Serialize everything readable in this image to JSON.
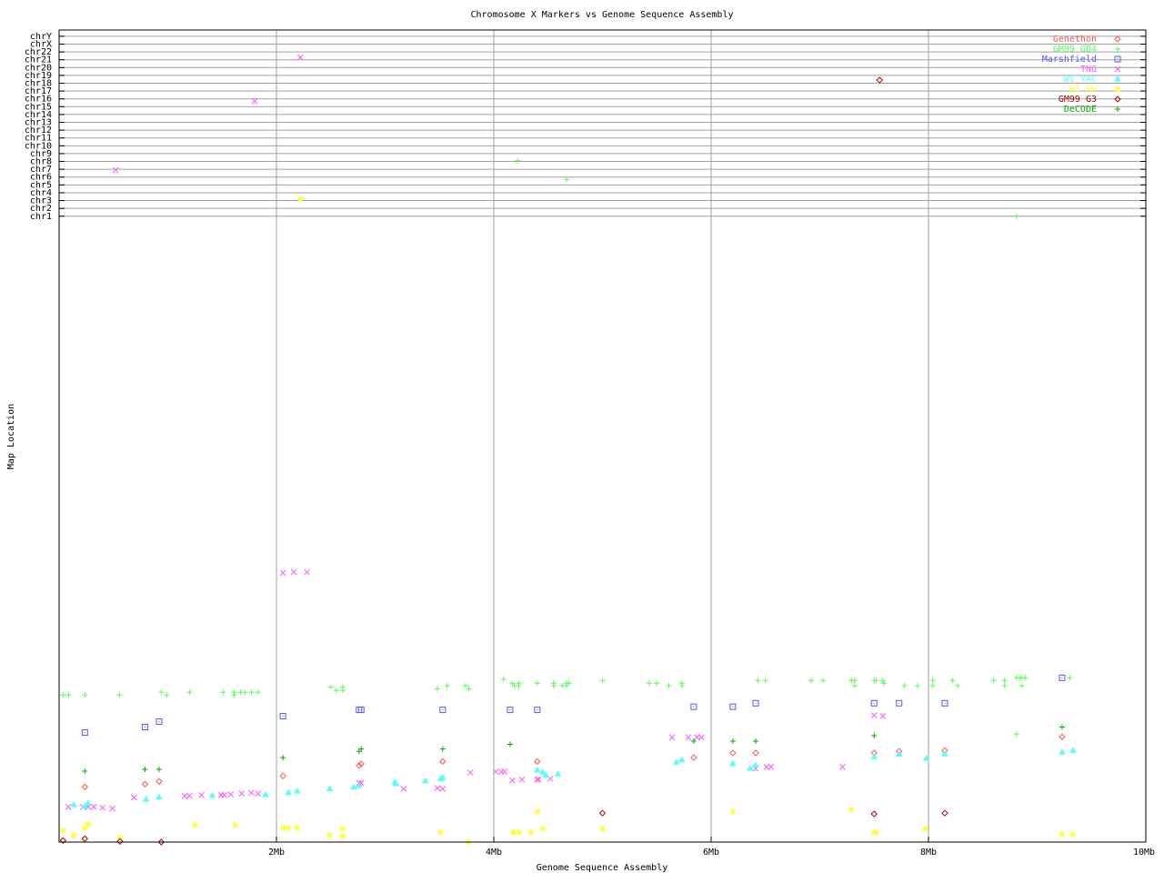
{
  "chart_data": {
    "type": "scatter",
    "title": "Chromosome X Markers vs Genome Sequence Assembly",
    "xlabel": "Genome Sequence Assembly",
    "ylabel": "Map Location",
    "xlim": [
      0,
      10
    ],
    "ylim": [
      0,
      103.8
    ],
    "x_ticks": [
      {
        "value": 2,
        "label": "2Mb"
      },
      {
        "value": 4,
        "label": "4Mb"
      },
      {
        "value": 6,
        "label": "6Mb"
      },
      {
        "value": 8,
        "label": "8Mb"
      },
      {
        "value": 10,
        "label": "10Mb"
      }
    ],
    "y_ticks": [
      {
        "value": 80,
        "label": "chr1"
      },
      {
        "value": 81,
        "label": "chr2"
      },
      {
        "value": 82,
        "label": "chr3"
      },
      {
        "value": 83,
        "label": "chr4"
      },
      {
        "value": 84,
        "label": "chr5"
      },
      {
        "value": 85,
        "label": "chr6"
      },
      {
        "value": 86,
        "label": "chr7"
      },
      {
        "value": 87,
        "label": "chr8"
      },
      {
        "value": 88,
        "label": "chr9"
      },
      {
        "value": 89,
        "label": "chr10"
      },
      {
        "value": 90,
        "label": "chr11"
      },
      {
        "value": 91,
        "label": "chr12"
      },
      {
        "value": 92,
        "label": "chr13"
      },
      {
        "value": 93,
        "label": "chr14"
      },
      {
        "value": 94,
        "label": "chr15"
      },
      {
        "value": 95,
        "label": "chr16"
      },
      {
        "value": 96,
        "label": "chr17"
      },
      {
        "value": 97,
        "label": "chr18"
      },
      {
        "value": 98,
        "label": "chr19"
      },
      {
        "value": 99,
        "label": "chr20"
      },
      {
        "value": 100,
        "label": "chr21"
      },
      {
        "value": 101,
        "label": "chr22"
      },
      {
        "value": 102,
        "label": "chrX"
      },
      {
        "value": 103,
        "label": "chrY"
      }
    ],
    "grid": true,
    "legend_position": "top-right",
    "series": [
      {
        "name": "Genethon",
        "marker": "diamond",
        "color": "#ff5555",
        "points": [
          [
            0.237,
            7.06
          ],
          [
            0.79,
            7.4
          ],
          [
            0.92,
            7.76
          ],
          [
            2.06,
            8.45
          ],
          [
            2.76,
            9.77
          ],
          [
            2.78,
            10.0
          ],
          [
            3.53,
            10.3
          ],
          [
            4.4,
            10.3
          ],
          [
            5.84,
            10.8
          ],
          [
            6.2,
            11.4
          ],
          [
            6.41,
            11.4
          ],
          [
            7.5,
            11.4
          ],
          [
            7.73,
            11.6
          ],
          [
            8.15,
            11.7
          ],
          [
            9.23,
            13.45
          ]
        ]
      },
      {
        "name": "GM99 GB4",
        "marker": "plus",
        "color": "#55ff55",
        "points": [
          [
            0.036,
            18.8
          ],
          [
            0.086,
            18.8
          ],
          [
            0.237,
            18.8
          ],
          [
            0.555,
            18.8
          ],
          [
            0.94,
            19.15
          ],
          [
            0.99,
            18.8
          ],
          [
            1.2,
            19.15
          ],
          [
            1.51,
            19.15
          ],
          [
            1.61,
            19.15
          ],
          [
            1.61,
            18.8
          ],
          [
            1.67,
            19.15
          ],
          [
            1.71,
            19.15
          ],
          [
            1.77,
            19.15
          ],
          [
            1.83,
            19.15
          ],
          [
            2.5,
            19.8
          ],
          [
            2.55,
            19.4
          ],
          [
            2.61,
            19.8
          ],
          [
            2.61,
            19.4
          ],
          [
            3.48,
            19.6
          ],
          [
            3.57,
            20.0
          ],
          [
            3.74,
            20.0
          ],
          [
            3.77,
            19.6
          ],
          [
            4.09,
            20.8
          ],
          [
            4.17,
            20.3
          ],
          [
            4.19,
            20.0
          ],
          [
            4.23,
            20.3
          ],
          [
            4.23,
            20.0
          ],
          [
            4.4,
            20.3
          ],
          [
            4.55,
            20.3
          ],
          [
            4.55,
            20.0
          ],
          [
            4.63,
            20.0
          ],
          [
            4.67,
            20.3
          ],
          [
            4.69,
            20.3
          ],
          [
            4.67,
            20.0
          ],
          [
            5.0,
            20.66
          ],
          [
            5.43,
            20.3
          ],
          [
            5.5,
            20.3
          ],
          [
            5.61,
            20.0
          ],
          [
            5.73,
            20.3
          ],
          [
            5.73,
            20.0
          ],
          [
            6.43,
            20.66
          ],
          [
            6.5,
            20.66
          ],
          [
            6.92,
            20.66
          ],
          [
            7.03,
            20.66
          ],
          [
            7.29,
            20.66
          ],
          [
            7.32,
            20.66
          ],
          [
            7.32,
            20.0
          ],
          [
            7.5,
            20.66
          ],
          [
            7.52,
            20.66
          ],
          [
            7.58,
            20.66
          ],
          [
            7.59,
            20.3
          ],
          [
            7.78,
            20.0
          ],
          [
            7.9,
            20.0
          ],
          [
            8.04,
            20.66
          ],
          [
            8.04,
            20.0
          ],
          [
            8.22,
            20.66
          ],
          [
            8.27,
            20.0
          ],
          [
            8.6,
            20.66
          ],
          [
            8.7,
            20.66
          ],
          [
            8.7,
            20.0
          ],
          [
            8.81,
            21.0
          ],
          [
            8.84,
            21.0
          ],
          [
            8.86,
            21.0
          ],
          [
            8.89,
            21.0
          ],
          [
            8.86,
            20.0
          ],
          [
            9.3,
            21.0
          ],
          [
            8.81,
            13.8
          ],
          [
            4.22,
            87.1
          ],
          [
            4.67,
            84.7
          ],
          [
            8.81,
            80.0
          ]
        ]
      },
      {
        "name": "Marshfield",
        "marker": "square",
        "color": "#5555ff",
        "points": [
          [
            0.237,
            14.0
          ],
          [
            0.79,
            14.7
          ],
          [
            0.92,
            15.4
          ],
          [
            2.06,
            16.1
          ],
          [
            2.76,
            16.9
          ],
          [
            2.78,
            16.9
          ],
          [
            3.53,
            16.9
          ],
          [
            4.15,
            16.9
          ],
          [
            4.4,
            16.9
          ],
          [
            5.84,
            17.3
          ],
          [
            6.2,
            17.3
          ],
          [
            6.41,
            17.75
          ],
          [
            7.5,
            17.75
          ],
          [
            7.73,
            17.75
          ],
          [
            8.15,
            17.75
          ],
          [
            9.23,
            21.0
          ]
        ]
      },
      {
        "name": "TNG",
        "marker": "cross",
        "color": "#ff55ff",
        "points": [
          [
            0.086,
            4.5
          ],
          [
            0.22,
            4.5
          ],
          [
            0.27,
            4.5
          ],
          [
            0.32,
            4.5
          ],
          [
            0.4,
            4.38
          ],
          [
            0.49,
            4.27
          ],
          [
            0.69,
            5.7
          ],
          [
            1.155,
            5.9
          ],
          [
            1.2,
            5.9
          ],
          [
            1.31,
            6.0
          ],
          [
            1.49,
            6.0
          ],
          [
            1.52,
            6.0
          ],
          [
            1.58,
            6.1
          ],
          [
            1.68,
            6.2
          ],
          [
            1.77,
            6.3
          ],
          [
            1.83,
            6.2
          ],
          [
            2.76,
            7.56
          ],
          [
            2.78,
            7.56
          ],
          [
            3.17,
            6.8
          ],
          [
            3.48,
            6.9
          ],
          [
            3.53,
            6.8
          ],
          [
            3.785,
            8.9
          ],
          [
            4.02,
            9.0
          ],
          [
            4.07,
            9.0
          ],
          [
            4.1,
            9.0
          ],
          [
            4.17,
            7.87
          ],
          [
            4.26,
            8.0
          ],
          [
            4.4,
            8.0
          ],
          [
            4.41,
            8.0
          ],
          [
            4.52,
            8.1
          ],
          [
            5.64,
            13.4
          ],
          [
            5.79,
            13.4
          ],
          [
            5.87,
            13.4
          ],
          [
            5.91,
            13.4
          ],
          [
            6.41,
            9.4
          ],
          [
            6.51,
            9.6
          ],
          [
            6.55,
            9.6
          ],
          [
            7.21,
            9.6
          ],
          [
            7.5,
            16.2
          ],
          [
            7.58,
            16.1
          ],
          [
            2.06,
            34.4
          ],
          [
            2.16,
            34.5
          ],
          [
            2.28,
            34.5
          ],
          [
            2.22,
            100.3
          ],
          [
            1.8,
            94.7
          ],
          [
            0.52,
            85.9
          ]
        ]
      },
      {
        "name": "WI YAC",
        "marker": "triangle",
        "color": "#55ffff",
        "points": [
          [
            0.136,
            4.77
          ],
          [
            0.237,
            4.57
          ],
          [
            0.265,
            4.96
          ],
          [
            0.8,
            5.47
          ],
          [
            0.92,
            5.74
          ],
          [
            1.41,
            5.93
          ],
          [
            1.9,
            6.05
          ],
          [
            2.11,
            6.3
          ],
          [
            2.19,
            6.5
          ],
          [
            2.49,
            6.8
          ],
          [
            2.71,
            7.0
          ],
          [
            2.76,
            7.2
          ],
          [
            3.09,
            7.67
          ],
          [
            3.1,
            7.44
          ],
          [
            3.37,
            7.8
          ],
          [
            3.51,
            8.06
          ],
          [
            3.53,
            8.26
          ],
          [
            4.4,
            9.2
          ],
          [
            4.45,
            8.95
          ],
          [
            4.48,
            8.5
          ],
          [
            4.59,
            8.7
          ],
          [
            5.68,
            10.2
          ],
          [
            5.73,
            10.5
          ],
          [
            6.2,
            10.0
          ],
          [
            6.36,
            9.4
          ],
          [
            6.41,
            9.8
          ],
          [
            7.5,
            10.9
          ],
          [
            7.73,
            11.2
          ],
          [
            7.98,
            10.7
          ],
          [
            8.15,
            11.25
          ],
          [
            9.23,
            11.5
          ],
          [
            9.33,
            11.7
          ]
        ]
      },
      {
        "name": "WI RH",
        "marker": "star",
        "color": "#ffff44",
        "points": [
          [
            0.036,
            1.47
          ],
          [
            0.136,
            0.9
          ],
          [
            0.237,
            1.83
          ],
          [
            0.265,
            2.3
          ],
          [
            0.56,
            0.58
          ],
          [
            1.25,
            2.17
          ],
          [
            1.62,
            2.17
          ],
          [
            2.06,
            1.83
          ],
          [
            2.11,
            1.83
          ],
          [
            2.19,
            1.83
          ],
          [
            2.49,
            0.9
          ],
          [
            2.61,
            1.7
          ],
          [
            2.61,
            0.78
          ],
          [
            3.51,
            1.24
          ],
          [
            3.77,
            0.0
          ],
          [
            4.4,
            3.9
          ],
          [
            4.18,
            1.24
          ],
          [
            4.23,
            1.24
          ],
          [
            4.34,
            1.24
          ],
          [
            4.45,
            1.7
          ],
          [
            5.0,
            1.7
          ],
          [
            6.2,
            3.9
          ],
          [
            7.29,
            4.15
          ],
          [
            7.5,
            1.24
          ],
          [
            7.52,
            1.24
          ],
          [
            7.97,
            1.7
          ],
          [
            9.23,
            1.0
          ],
          [
            9.33,
            1.0
          ],
          [
            2.22,
            82.2
          ]
        ]
      },
      {
        "name": "GM99 G3",
        "marker": "diamond",
        "color": "#aa0000",
        "points": [
          [
            0.036,
            0.2
          ],
          [
            0.237,
            0.43
          ],
          [
            0.56,
            0.08
          ],
          [
            0.94,
            0.0
          ],
          [
            5.0,
            3.7
          ],
          [
            7.5,
            3.6
          ],
          [
            8.15,
            3.7
          ],
          [
            7.55,
            97.4
          ]
        ]
      },
      {
        "name": "DeCODE",
        "marker": "plus",
        "color": "#00aa00",
        "points": [
          [
            0.237,
            9.07
          ],
          [
            0.79,
            9.3
          ],
          [
            0.92,
            9.3
          ],
          [
            2.06,
            10.8
          ],
          [
            2.76,
            11.6
          ],
          [
            2.78,
            11.9
          ],
          [
            3.53,
            11.9
          ],
          [
            4.15,
            12.5
          ],
          [
            5.84,
            12.9
          ],
          [
            6.2,
            12.9
          ],
          [
            6.41,
            12.9
          ],
          [
            7.5,
            13.6
          ],
          [
            9.23,
            14.7
          ]
        ]
      }
    ]
  }
}
